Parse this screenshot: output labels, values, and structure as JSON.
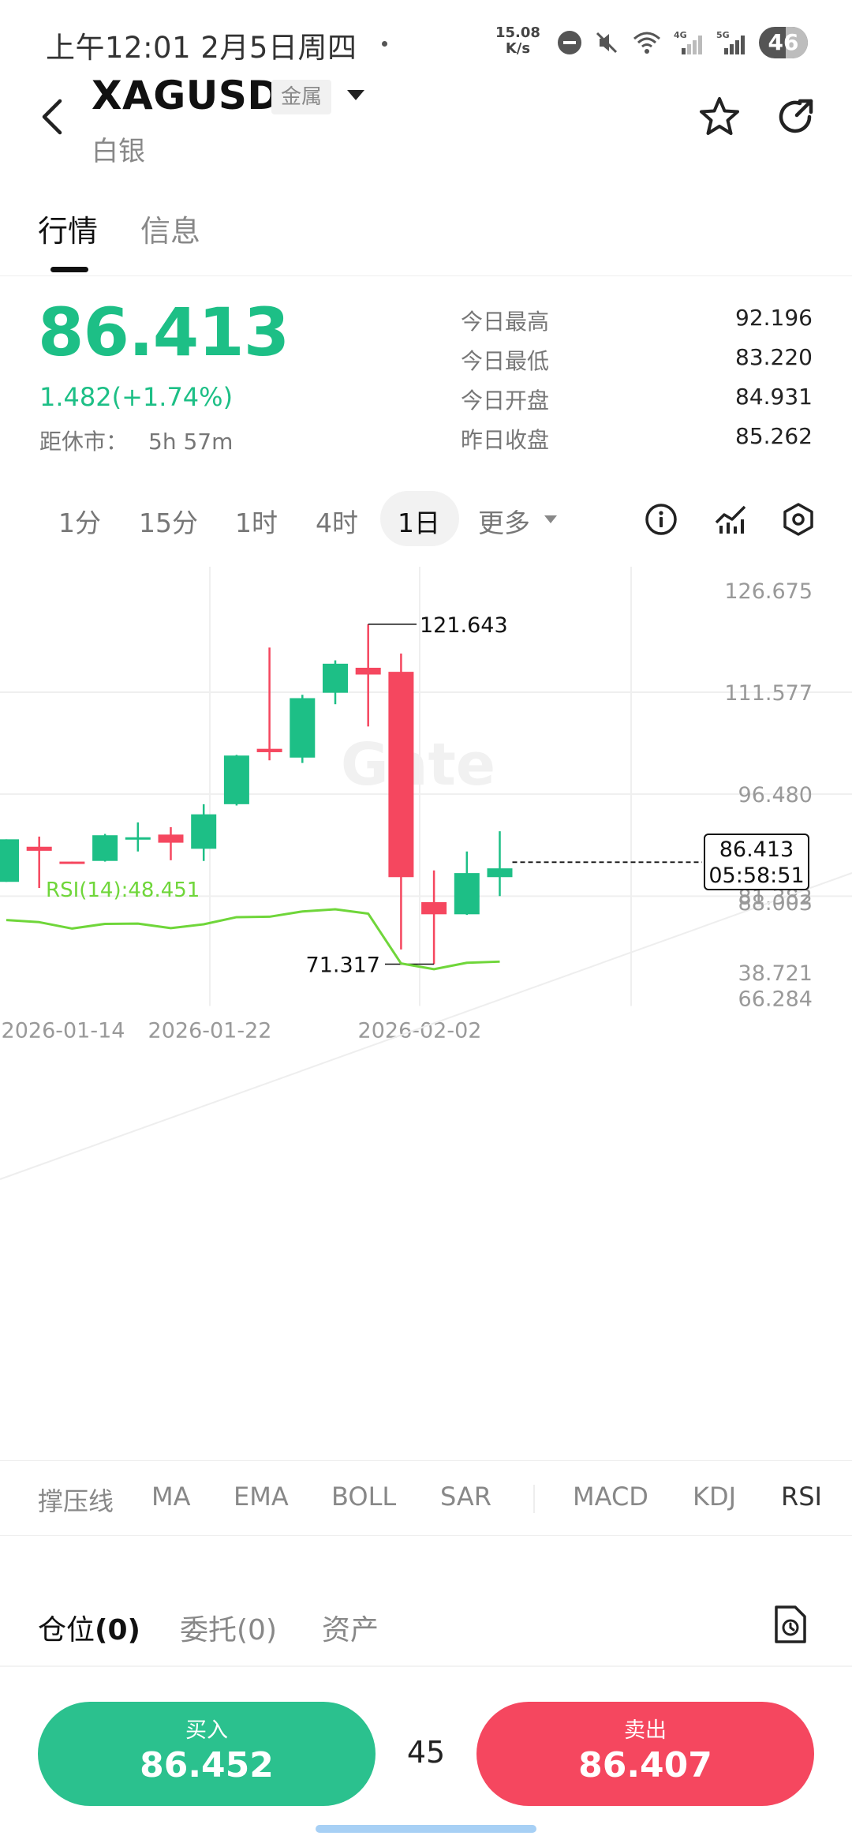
{
  "status_bar": {
    "time": "上午12:01  2月5日周四",
    "speed_value": "15.08",
    "speed_unit": "K/s",
    "network_1": "4G",
    "network_2": "5G",
    "battery": "46"
  },
  "header": {
    "symbol": "XAGUSD",
    "tag": "金属",
    "name": "白银"
  },
  "tabs": [
    "行情",
    "信息"
  ],
  "quote": {
    "last_price": "86.413",
    "change": "1.482(+1.74%)",
    "close_label": "距休市：",
    "close_value": "5h 57m",
    "stats": [
      {
        "label": "今日最高",
        "value": "92.196"
      },
      {
        "label": "今日最低",
        "value": "83.220"
      },
      {
        "label": "今日开盘",
        "value": "84.931"
      },
      {
        "label": "昨日收盘",
        "value": "85.262"
      }
    ]
  },
  "intervals": {
    "items": [
      "1分",
      "15分",
      "1时",
      "4时",
      "1日"
    ],
    "more": "更多",
    "active": "1日"
  },
  "colors": {
    "up": "#1dbf86",
    "down": "#f5475f",
    "rsi_line": "#6fd63a",
    "buy": "#2bc18e",
    "sell": "#f5475f"
  },
  "chart_data": {
    "type": "candlestick",
    "ylim": [
      66.284,
      126.675
    ],
    "y_ticks": [
      "126.675",
      "111.577",
      "96.480",
      "81.382",
      "66.284"
    ],
    "x_ticks": [
      "2026-01-14",
      "2026-01-22",
      "2026-02-02"
    ],
    "candles": [
      {
        "o": 83.5,
        "h": 89.8,
        "l": 83.5,
        "c": 89.8
      },
      {
        "o": 88.7,
        "h": 90.2,
        "l": 82.6,
        "c": 88.1
      },
      {
        "o": 86.5,
        "h": 86.5,
        "l": 86.3,
        "c": 86.4
      },
      {
        "o": 86.6,
        "h": 90.6,
        "l": 86.5,
        "c": 90.4
      },
      {
        "o": 89.9,
        "h": 92.3,
        "l": 88.0,
        "c": 90.1
      },
      {
        "o": 90.5,
        "h": 91.6,
        "l": 86.7,
        "c": 89.3
      },
      {
        "o": 88.4,
        "h": 95.0,
        "l": 86.6,
        "c": 93.5
      },
      {
        "o": 95.0,
        "h": 102.3,
        "l": 94.8,
        "c": 102.2
      },
      {
        "o": 103.2,
        "h": 118.2,
        "l": 101.5,
        "c": 102.7
      },
      {
        "o": 101.9,
        "h": 111.2,
        "l": 101.1,
        "c": 110.7
      },
      {
        "o": 111.5,
        "h": 116.3,
        "l": 109.8,
        "c": 115.8
      },
      {
        "o": 115.2,
        "h": 121.643,
        "l": 106.5,
        "c": 114.2
      },
      {
        "o": 114.6,
        "h": 117.3,
        "l": 73.5,
        "c": 84.2
      },
      {
        "o": 80.5,
        "h": 85.2,
        "l": 71.317,
        "c": 78.7
      },
      {
        "o": 78.7,
        "h": 88.0,
        "l": 78.6,
        "c": 84.8
      },
      {
        "o": 84.2,
        "h": 91.0,
        "l": 81.4,
        "c": 85.5
      }
    ],
    "high_label": "121.643",
    "low_label": "71.317",
    "current_price": "86.413",
    "countdown": "05:58:51",
    "rsi": {
      "label": "RSI(14):48.451",
      "ylim": [
        38.721,
        88.003
      ],
      "y_ticks": [
        "88.003",
        "38.721"
      ],
      "values": [
        75.5,
        74.0,
        69.5,
        72.8,
        73.0,
        69.8,
        72.5,
        77.5,
        77.8,
        81.5,
        83.0,
        80.0,
        45.0,
        41.0,
        45.5,
        46.3
      ]
    }
  },
  "indicators": [
    "撑压线",
    "MA",
    "EMA",
    "BOLL",
    "SAR",
    "MACD",
    "KDJ",
    "RSI"
  ],
  "positions": {
    "tabs": [
      {
        "label": "仓位",
        "count": "(0)"
      },
      {
        "label": "委托",
        "count": "(0)"
      },
      {
        "label": "资产",
        "count": ""
      }
    ]
  },
  "trade": {
    "buy_label": "买入",
    "buy_price": "86.452",
    "spread": "45",
    "sell_label": "卖出",
    "sell_price": "86.407"
  },
  "watermark": "Gate"
}
